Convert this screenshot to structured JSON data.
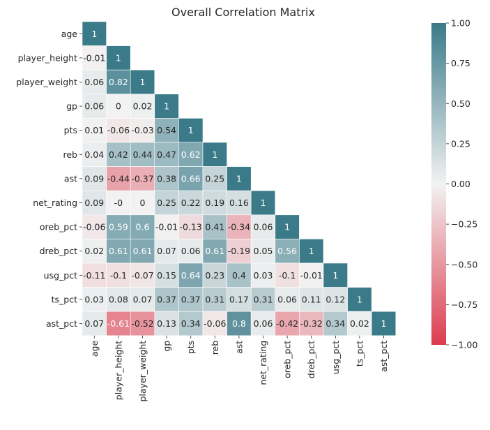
{
  "chart_data": {
    "type": "heatmap",
    "title": "Overall Correlation Matrix",
    "triangle": "lower",
    "labels": [
      "age",
      "player_height",
      "player_weight",
      "gp",
      "pts",
      "reb",
      "ast",
      "net_rating",
      "oreb_pct",
      "dreb_pct",
      "usg_pct",
      "ts_pct",
      "ast_pct"
    ],
    "values": [
      [
        1
      ],
      [
        -0.01,
        1
      ],
      [
        0.06,
        0.82,
        1
      ],
      [
        0.06,
        0,
        0.02,
        1
      ],
      [
        0.01,
        -0.06,
        -0.03,
        0.54,
        1
      ],
      [
        0.04,
        0.42,
        0.44,
        0.47,
        0.62,
        1
      ],
      [
        0.09,
        -0.44,
        -0.37,
        0.38,
        0.66,
        0.25,
        1
      ],
      [
        0.09,
        -0.0,
        0,
        0.25,
        0.22,
        0.19,
        0.16,
        1
      ],
      [
        -0.06,
        0.59,
        0.6,
        -0.01,
        -0.13,
        0.41,
        -0.34,
        0.06,
        1
      ],
      [
        0.02,
        0.61,
        0.61,
        0.07,
        0.06,
        0.61,
        -0.19,
        0.05,
        0.56,
        1
      ],
      [
        -0.11,
        -0.1,
        -0.07,
        0.15,
        0.64,
        0.23,
        0.4,
        0.03,
        -0.1,
        -0.01,
        1
      ],
      [
        0.03,
        0.08,
        0.07,
        0.37,
        0.37,
        0.31,
        0.17,
        0.31,
        0.06,
        0.11,
        0.12,
        1
      ],
      [
        0.07,
        -0.61,
        -0.52,
        0.13,
        0.34,
        -0.06,
        0.8,
        0.06,
        -0.42,
        -0.32,
        0.34,
        0.02,
        1
      ]
    ],
    "cell_labels": [
      [
        "1"
      ],
      [
        "-0.01",
        "1"
      ],
      [
        "0.06",
        "0.82",
        "1"
      ],
      [
        "0.06",
        "0",
        "0.02",
        "1"
      ],
      [
        "0.01",
        "-0.06",
        "-0.03",
        "0.54",
        "1"
      ],
      [
        "0.04",
        "0.42",
        "0.44",
        "0.47",
        "0.62",
        "1"
      ],
      [
        "0.09",
        "-0.44",
        "-0.37",
        "0.38",
        "0.66",
        "0.25",
        "1"
      ],
      [
        "0.09",
        "-0",
        "0",
        "0.25",
        "0.22",
        "0.19",
        "0.16",
        "1"
      ],
      [
        "-0.06",
        "0.59",
        "0.6",
        "-0.01",
        "-0.13",
        "0.41",
        "-0.34",
        "0.06",
        "1"
      ],
      [
        "0.02",
        "0.61",
        "0.61",
        "0.07",
        "0.06",
        "0.61",
        "-0.19",
        "0.05",
        "0.56",
        "1"
      ],
      [
        "-0.11",
        "-0.1",
        "-0.07",
        "0.15",
        "0.64",
        "0.23",
        "0.4",
        "0.03",
        "-0.1",
        "-0.01",
        "1"
      ],
      [
        "0.03",
        "0.08",
        "0.07",
        "0.37",
        "0.37",
        "0.31",
        "0.17",
        "0.31",
        "0.06",
        "0.11",
        "0.12",
        "1"
      ],
      [
        "0.07",
        "-0.61",
        "-0.52",
        "0.13",
        "0.34",
        "-0.06",
        "0.8",
        "0.06",
        "-0.42",
        "-0.32",
        "0.34",
        "0.02",
        "1"
      ]
    ],
    "color_range": [
      -1,
      1
    ],
    "colorbar_ticks": [
      1.0,
      0.75,
      0.5,
      0.25,
      0.0,
      -0.25,
      -0.5,
      -0.75,
      -1.0
    ],
    "colorbar_tick_labels": [
      "1.00",
      "0.75",
      "0.50",
      "0.25",
      "0.00",
      "−0.25",
      "−0.50",
      "−0.75",
      "−1.00"
    ],
    "colormap": {
      "negative_end": "#dc3c4e",
      "midpoint": "#f2f2f2",
      "positive_end": "#3a7a89"
    },
    "grid": false
  }
}
